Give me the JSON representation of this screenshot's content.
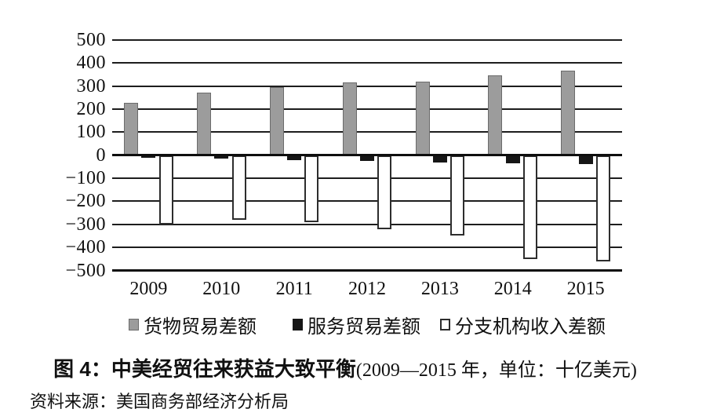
{
  "figure": {
    "caption": {
      "figure_label": "图 4：",
      "title": "中美经贸往来获益大致平衡",
      "subtitle": "(2009—2015 年，单位：十亿美元)",
      "source": "资料来源：美国商务部经济分析局"
    }
  },
  "chart_data": {
    "type": "bar",
    "title": "中美经贸往来获益大致平衡",
    "subtitle": "2009—2015 年，单位：十亿美元",
    "unit": "十亿美元",
    "categories": [
      "2009",
      "2010",
      "2011",
      "2012",
      "2013",
      "2014",
      "2015"
    ],
    "series": [
      {
        "key": "goods-trade-balance",
        "name": "货物贸易差额",
        "color": "#9c9c9c",
        "border_color": "#6b6b6b",
        "values": [
          227,
          273,
          295,
          315,
          319,
          345,
          367
        ]
      },
      {
        "key": "services-trade-balance",
        "name": "服务贸易差额",
        "color": "#161616",
        "border_color": "#161616",
        "values": [
          -10,
          -15,
          -20,
          -25,
          -30,
          -35,
          -40
        ]
      },
      {
        "key": "branch-income-balance",
        "name": "分支机构收入差额",
        "color": "#ffffff",
        "border_color": "#2d2d2d",
        "values": [
          -300,
          -280,
          -290,
          -320,
          -350,
          -450,
          -460
        ]
      }
    ],
    "ylim": [
      -500,
      500
    ],
    "ytick_values": [
      500,
      400,
      300,
      200,
      100,
      0,
      -100,
      -200,
      -300,
      -400,
      -500
    ],
    "ytick_labels": [
      "500",
      "400",
      "300",
      "200",
      "100",
      "0",
      "−100",
      "−200",
      "−300",
      "−400",
      "−500"
    ],
    "grid": true,
    "legend_position": "bottom"
  }
}
